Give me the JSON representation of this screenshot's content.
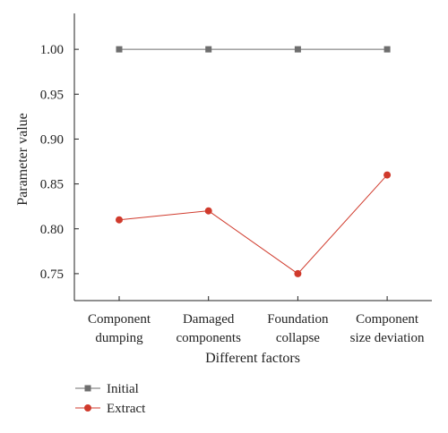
{
  "chart_data": {
    "type": "line",
    "categories": [
      [
        "Component",
        "dumping"
      ],
      [
        "Damaged",
        "components"
      ],
      [
        "Foundation",
        "collapse"
      ],
      [
        "Component",
        "size deviation"
      ]
    ],
    "series": [
      {
        "name": "Initial",
        "values": [
          1.0,
          1.0,
          1.0,
          1.0
        ],
        "color": "#6e6e6e",
        "marker": "square"
      },
      {
        "name": "Extract",
        "values": [
          0.81,
          0.82,
          0.75,
          0.86
        ],
        "color": "#d03a2c",
        "marker": "circle"
      }
    ],
    "xlabel": "Different factors",
    "ylabel": "Parameter value",
    "ylim": [
      0.72,
      1.04
    ],
    "yticks": [
      "0.75",
      "0.80",
      "0.85",
      "0.90",
      "0.95",
      "1.00"
    ],
    "grid": false,
    "legend_position": "bottom-left"
  }
}
